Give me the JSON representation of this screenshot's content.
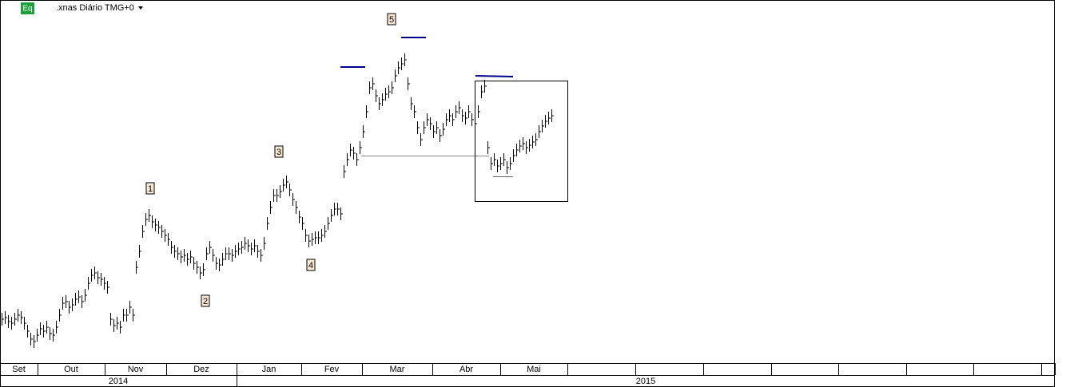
{
  "chart_data": {
    "type": "ohlc",
    "title": ".xnas Diário TMG+0",
    "badge": "Eq",
    "categories": [
      "Set",
      "Out",
      "Nov",
      "Dez",
      "Jan",
      "Fev",
      "Mar",
      "Abr",
      "Mai"
    ],
    "years": [
      "2014",
      "2015"
    ],
    "wave_labels": [
      "1",
      "2",
      "3",
      "4",
      "5"
    ],
    "ylim": [
      0,
      455
    ],
    "color": "#000000",
    "marker_color": "#00008b",
    "high": [
      63,
      65,
      60,
      58,
      63,
      68,
      65,
      58,
      48,
      38,
      35,
      43,
      51,
      48,
      53,
      45,
      43,
      53,
      68,
      83,
      85,
      78,
      81,
      88,
      91,
      85,
      93,
      108,
      118,
      121,
      115,
      113,
      108,
      103,
      63,
      55,
      58,
      53,
      68,
      68,
      78,
      68,
      128,
      148,
      173,
      188,
      193,
      185,
      181,
      178,
      173,
      168,
      163,
      153,
      148,
      145,
      141,
      143,
      138,
      141,
      133,
      128,
      121,
      125,
      145,
      153,
      143,
      133,
      131,
      138,
      145,
      145,
      143,
      148,
      151,
      153,
      158,
      155,
      151,
      155,
      148,
      143,
      158,
      183,
      203,
      218,
      218,
      223,
      231,
      235,
      225,
      213,
      203,
      191,
      183,
      168,
      161,
      163,
      165,
      165,
      168,
      173,
      183,
      193,
      201,
      201,
      195,
      248,
      263,
      275,
      271,
      263,
      278,
      298,
      323,
      353,
      358,
      343,
      333,
      338,
      345,
      348,
      353,
      368,
      378,
      383,
      388,
      358,
      333,
      323,
      303,
      288,
      303,
      313,
      308,
      298,
      303,
      293,
      301,
      313,
      318,
      313,
      323,
      328,
      318,
      315,
      323,
      313,
      308,
      323,
      348,
      355,
      278,
      258,
      263,
      255,
      258,
      263,
      253,
      258,
      268,
      275,
      280,
      283,
      278,
      281,
      285,
      288,
      298,
      305,
      311,
      315,
      318
    ],
    "low": [
      47,
      49,
      44,
      42,
      47,
      52,
      49,
      42,
      32,
      22,
      19,
      27,
      35,
      32,
      37,
      29,
      27,
      37,
      52,
      67,
      69,
      62,
      65,
      72,
      75,
      69,
      77,
      92,
      102,
      105,
      99,
      97,
      92,
      87,
      47,
      39,
      42,
      37,
      52,
      52,
      62,
      52,
      112,
      132,
      157,
      172,
      177,
      169,
      165,
      162,
      157,
      152,
      147,
      137,
      132,
      129,
      125,
      127,
      122,
      125,
      117,
      112,
      105,
      109,
      129,
      137,
      127,
      117,
      115,
      122,
      129,
      129,
      127,
      132,
      135,
      137,
      142,
      139,
      135,
      139,
      132,
      127,
      142,
      167,
      187,
      202,
      202,
      207,
      215,
      219,
      209,
      197,
      187,
      175,
      167,
      152,
      145,
      147,
      149,
      149,
      152,
      157,
      167,
      177,
      185,
      185,
      179,
      232,
      247,
      259,
      255,
      247,
      262,
      282,
      307,
      337,
      342,
      327,
      317,
      322,
      329,
      332,
      337,
      352,
      362,
      367,
      372,
      342,
      317,
      307,
      287,
      272,
      287,
      297,
      292,
      282,
      287,
      277,
      285,
      297,
      302,
      297,
      307,
      312,
      302,
      299,
      307,
      297,
      292,
      307,
      332,
      339,
      262,
      242,
      247,
      239,
      242,
      247,
      237,
      242,
      252,
      259,
      264,
      267,
      262,
      265,
      269,
      272,
      282,
      289,
      295,
      299,
      302
    ],
    "close": [
      55,
      57,
      52,
      50,
      55,
      60,
      57,
      50,
      40,
      30,
      27,
      35,
      43,
      40,
      45,
      37,
      35,
      45,
      60,
      75,
      77,
      70,
      73,
      80,
      83,
      77,
      85,
      100,
      110,
      113,
      107,
      105,
      100,
      95,
      55,
      47,
      50,
      45,
      60,
      60,
      70,
      60,
      120,
      140,
      165,
      180,
      185,
      177,
      173,
      170,
      165,
      160,
      155,
      145,
      140,
      137,
      133,
      135,
      130,
      133,
      125,
      120,
      113,
      117,
      137,
      145,
      135,
      125,
      123,
      130,
      137,
      137,
      135,
      140,
      143,
      145,
      150,
      147,
      143,
      147,
      140,
      135,
      150,
      175,
      195,
      210,
      210,
      215,
      223,
      227,
      217,
      205,
      195,
      183,
      175,
      160,
      153,
      155,
      157,
      157,
      160,
      165,
      175,
      185,
      193,
      193,
      187,
      240,
      255,
      267,
      263,
      255,
      270,
      290,
      315,
      345,
      350,
      335,
      325,
      330,
      337,
      340,
      345,
      360,
      370,
      375,
      380,
      350,
      325,
      315,
      295,
      280,
      295,
      305,
      300,
      290,
      295,
      285,
      293,
      305,
      310,
      305,
      315,
      320,
      310,
      307,
      315,
      305,
      300,
      315,
      340,
      347,
      270,
      250,
      255,
      247,
      250,
      255,
      245,
      250,
      260,
      267,
      272,
      275,
      270,
      273,
      277,
      280,
      290,
      297,
      303,
      307,
      310
    ]
  }
}
